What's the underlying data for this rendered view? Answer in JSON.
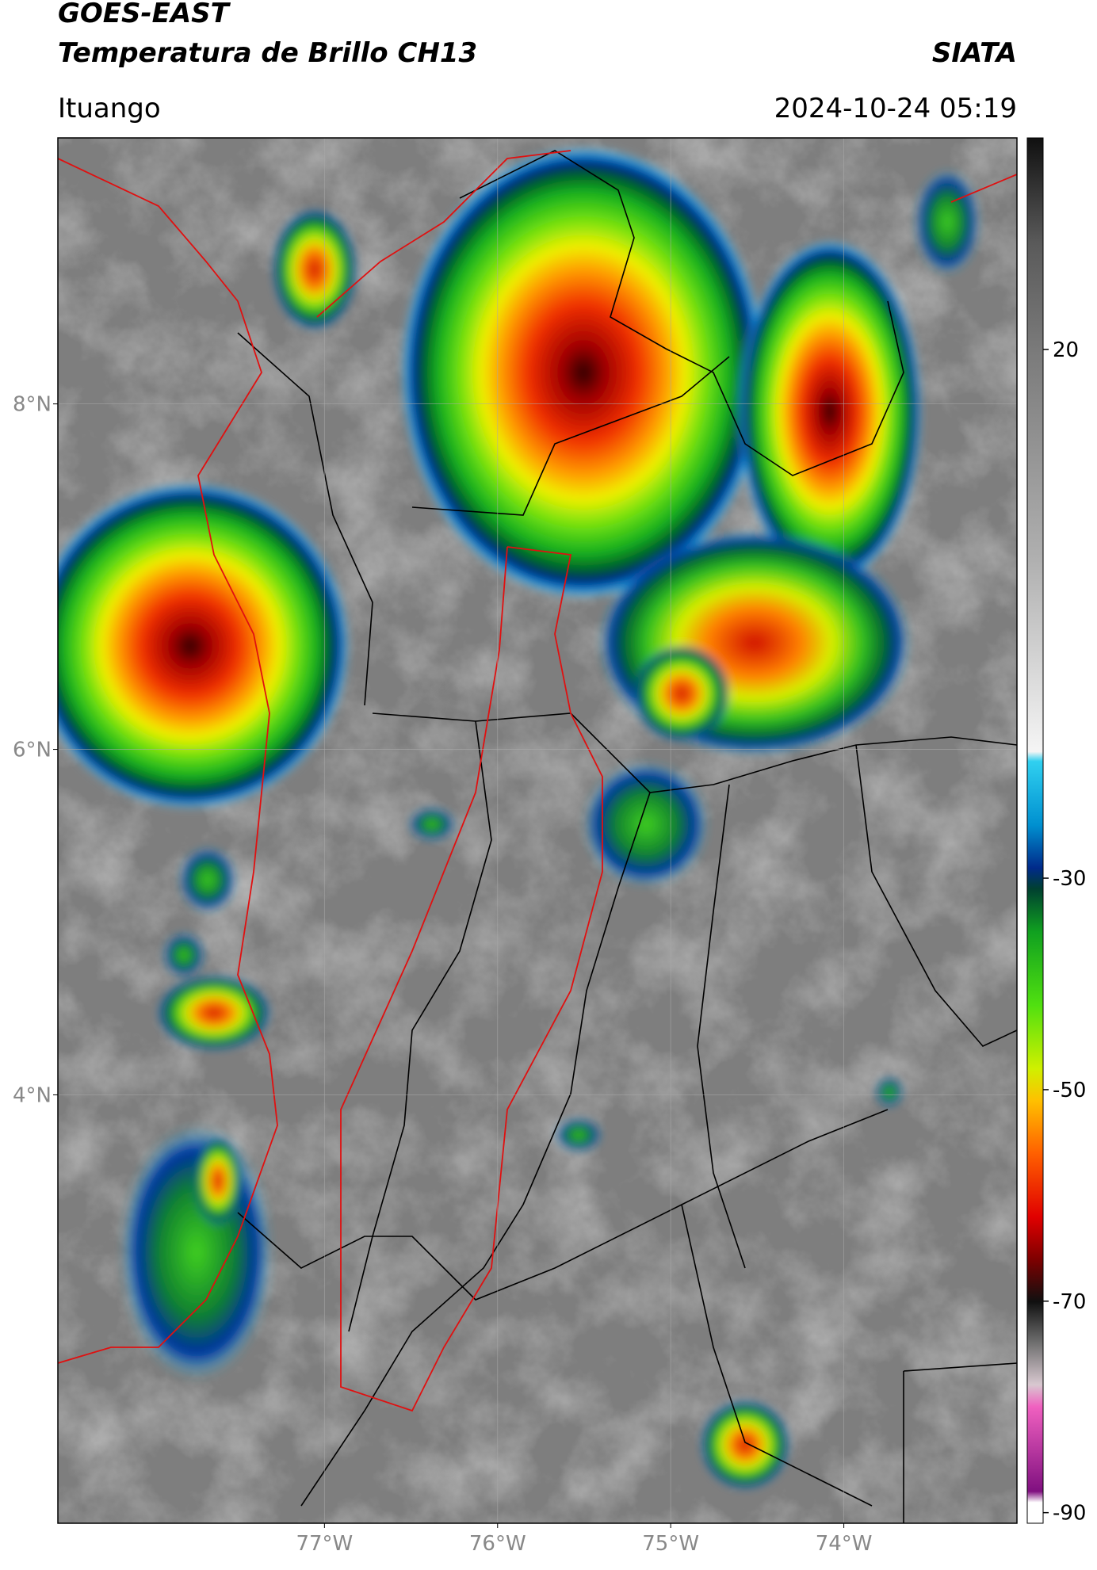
{
  "header": {
    "title_line1": "GOES-EAST",
    "title_line2": "Temperatura de Brillo CH13",
    "source": "SIATA",
    "location": "Ituango",
    "datetime": "2024-10-24 05:19"
  },
  "map": {
    "xlim": [
      -78.54,
      -73.0
    ],
    "ylim": [
      1.52,
      9.54
    ],
    "lat_ticks": [
      {
        "value": 8,
        "label": "8°N"
      },
      {
        "value": 6,
        "label": "6°N"
      },
      {
        "value": 4,
        "label": "4°N"
      }
    ],
    "lon_ticks": [
      {
        "value": -77,
        "label": "77°W"
      },
      {
        "value": -76,
        "label": "76°W"
      },
      {
        "value": -75,
        "label": "75°W"
      },
      {
        "value": -74,
        "label": "74°W"
      }
    ]
  },
  "colorbar": {
    "range": [
      -91,
      40
    ],
    "ticks": [
      20,
      -30,
      -50,
      -70,
      -90
    ]
  }
}
